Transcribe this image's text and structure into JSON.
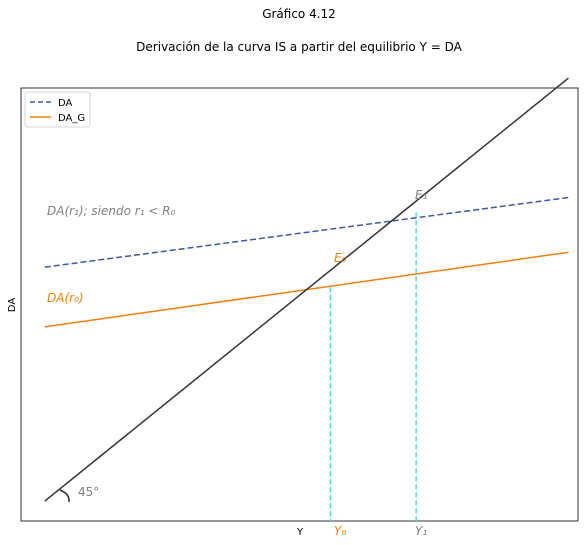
{
  "chart_data": {
    "type": "line",
    "title": "Gráfico 4.12",
    "subtitle": "Derivación de la curva IS a partir del equilibrio Y = DA",
    "xlabel": "Y",
    "ylabel": "DA",
    "x_ticks": [
      "Y₀",
      "Y₁"
    ],
    "xlim": [
      -5,
      112
    ],
    "ylim": [
      -4,
      83
    ],
    "grid": false,
    "legend": {
      "placement": "top-left",
      "entries": [
        "DA",
        "DA_G"
      ]
    },
    "series": [
      {
        "name": "DA",
        "style": "dashed",
        "color": "#3a5a9c",
        "x": [
          0,
          110
        ],
        "y": [
          47,
          61
        ]
      },
      {
        "name": "DA_G",
        "style": "solid",
        "color": "#f07f0e",
        "x": [
          0,
          110
        ],
        "y": [
          35,
          50
        ]
      },
      {
        "style": "solid",
        "color": "#333333",
        "x": [
          0,
          110
        ],
        "y": [
          0,
          85
        ]
      }
    ],
    "equilibria": [
      {
        "label": "E₀",
        "x": 60,
        "y": 43,
        "x_tick": "Y₀"
      },
      {
        "label": "E₁",
        "x": 78,
        "y": 58,
        "x_tick": "Y₁"
      }
    ],
    "vline_color": "#40e0d0",
    "annotations": [
      {
        "text": "DA(r₁); siendo r₁ < R₀",
        "color": "#808080"
      },
      {
        "text": "DA(r₀)",
        "color": "#f07f0e"
      },
      {
        "text": "45°",
        "color": "#808080"
      }
    ]
  }
}
